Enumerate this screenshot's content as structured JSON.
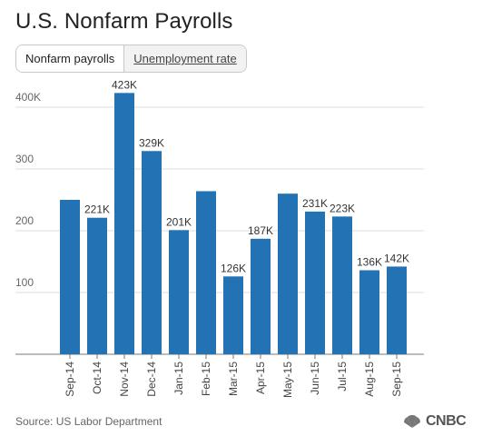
{
  "title": "U.S. Nonfarm Payrolls",
  "tabs": [
    {
      "label": "Nonfarm payrolls",
      "active": true
    },
    {
      "label": "Unemployment rate",
      "active": false
    }
  ],
  "footer": {
    "source": "Source: US Labor Department",
    "brand": "CNBC"
  },
  "chart_data": {
    "type": "bar",
    "categories": [
      "Sep-14",
      "Oct-14",
      "Nov-14",
      "Dec-14",
      "Jan-15",
      "Feb-15",
      "Mar-15",
      "Apr-15",
      "May-15",
      "Jun-15",
      "Jul-15",
      "Aug-15",
      "Sep-15"
    ],
    "values": [
      250,
      221,
      423,
      329,
      201,
      264,
      126,
      187,
      260,
      231,
      223,
      136,
      142
    ],
    "data_labels": [
      "",
      "221K",
      "423K",
      "329K",
      "201K",
      "",
      "126K",
      "187K",
      "",
      "231K",
      "223K",
      "136K",
      "142K"
    ],
    "yticks": [
      100,
      200,
      300,
      400
    ],
    "ytick_labels": [
      "100",
      "200",
      "300",
      "400K"
    ],
    "ylim": [
      0,
      430
    ],
    "grid": true,
    "bar_color": "#2272b4",
    "grid_color": "#dddddd"
  }
}
